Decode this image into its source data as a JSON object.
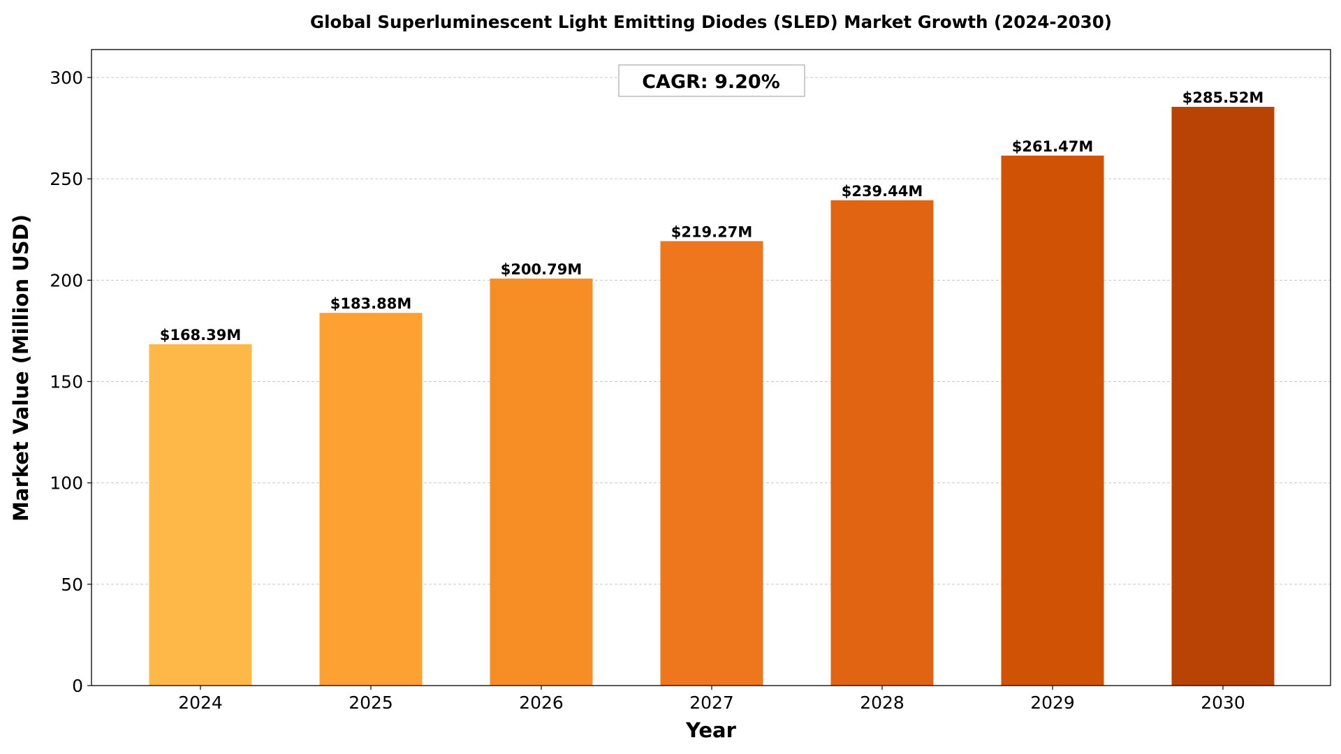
{
  "chart_data": {
    "type": "bar",
    "title": "Global Superluminescent Light Emitting Diodes (SLED) Market Growth (2024-2030)",
    "xlabel": "Year",
    "ylabel": "Market Value (Million USD)",
    "categories": [
      "2024",
      "2025",
      "2026",
      "2027",
      "2028",
      "2029",
      "2030"
    ],
    "values": [
      168.39,
      183.88,
      200.79,
      219.27,
      239.44,
      261.47,
      285.52
    ],
    "data_labels": [
      "$168.39M",
      "$183.88M",
      "$200.79M",
      "$219.27M",
      "$239.44M",
      "$261.47M",
      "$285.52M"
    ],
    "colors": [
      "#fdb847",
      "#fda232",
      "#f68d25",
      "#ee761c",
      "#e06411",
      "#d05204",
      "#b84305"
    ],
    "ylim": [
      0,
      314
    ],
    "yticks": [
      0,
      50,
      100,
      150,
      200,
      250,
      300
    ],
    "grid": "y, dashed",
    "annotation": "CAGR: 9.20%"
  }
}
